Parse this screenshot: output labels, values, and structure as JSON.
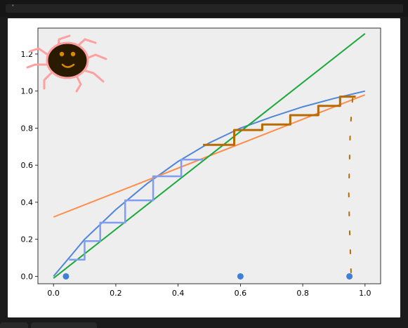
{
  "window": {
    "title_glyph": "'"
  },
  "chart_data": {
    "type": "line",
    "title": "",
    "xlabel": "",
    "ylabel": "",
    "xlim": [
      -0.05,
      1.05
    ],
    "ylim": [
      -0.04,
      1.34
    ],
    "grid": false,
    "xticks": [
      0.0,
      0.2,
      0.4,
      0.6,
      0.8,
      1.0
    ],
    "yticks": [
      0.0,
      0.2,
      0.4,
      0.6,
      0.8,
      1.0,
      1.2
    ],
    "xtick_labels": [
      "0.0",
      "0.2",
      "0.4",
      "0.6",
      "0.8",
      "1.0"
    ],
    "ytick_labels": [
      "0.0",
      "0.2",
      "0.4",
      "0.6",
      "0.8",
      "1.0",
      "1.2"
    ],
    "colors": {
      "axes_bg": "#eeeeee",
      "equilibrium_curve": "#4f86d8",
      "operating_line": "#ff8c4a",
      "diagonal": "#18a83a",
      "stairs_rectifying": "#7f9ef2",
      "stairs_stripping": "#b86a00",
      "feed_points": "#3f7fd8",
      "doodle_face": "#2a1a00",
      "doodle_legs": "#ffa0a0"
    },
    "series": [
      {
        "role": "equilibrium-curve",
        "x": [
          0.0,
          0.05,
          0.1,
          0.15,
          0.2,
          0.3,
          0.4,
          0.5,
          0.6,
          0.7,
          0.8,
          0.9,
          1.0
        ],
        "y": [
          0.0,
          0.1,
          0.2,
          0.28,
          0.36,
          0.5,
          0.62,
          0.72,
          0.8,
          0.86,
          0.915,
          0.96,
          1.0
        ]
      },
      {
        "role": "operating-line",
        "x": [
          0.0,
          1.0
        ],
        "y": [
          0.32,
          0.98
        ]
      },
      {
        "role": "diagonal-line",
        "x": [
          0.0,
          1.0
        ],
        "y": [
          -0.01,
          1.31
        ]
      }
    ],
    "stairs_rectifying": {
      "x": [
        0.05,
        0.1,
        0.1,
        0.15,
        0.15,
        0.23,
        0.23,
        0.32,
        0.32,
        0.41,
        0.41,
        0.48
      ],
      "y": [
        0.09,
        0.09,
        0.19,
        0.19,
        0.29,
        0.29,
        0.41,
        0.41,
        0.54,
        0.54,
        0.63,
        0.63
      ]
    },
    "stairs_stripping": {
      "x": [
        0.48,
        0.58,
        0.58,
        0.67,
        0.67,
        0.76,
        0.76,
        0.85,
        0.85,
        0.92,
        0.92,
        0.97
      ],
      "y": [
        0.71,
        0.71,
        0.79,
        0.79,
        0.82,
        0.82,
        0.87,
        0.87,
        0.92,
        0.92,
        0.97,
        0.97
      ]
    },
    "stripping_tail": {
      "x": [
        0.96,
        0.955,
        0.952,
        0.95,
        0.948,
        0.95,
        0.955
      ],
      "y": [
        0.96,
        0.85,
        0.75,
        0.6,
        0.45,
        0.28,
        0.02
      ]
    },
    "feed_points": {
      "x": [
        0.04,
        0.6,
        0.95
      ],
      "y": [
        0.0,
        0.0,
        0.0
      ]
    }
  }
}
